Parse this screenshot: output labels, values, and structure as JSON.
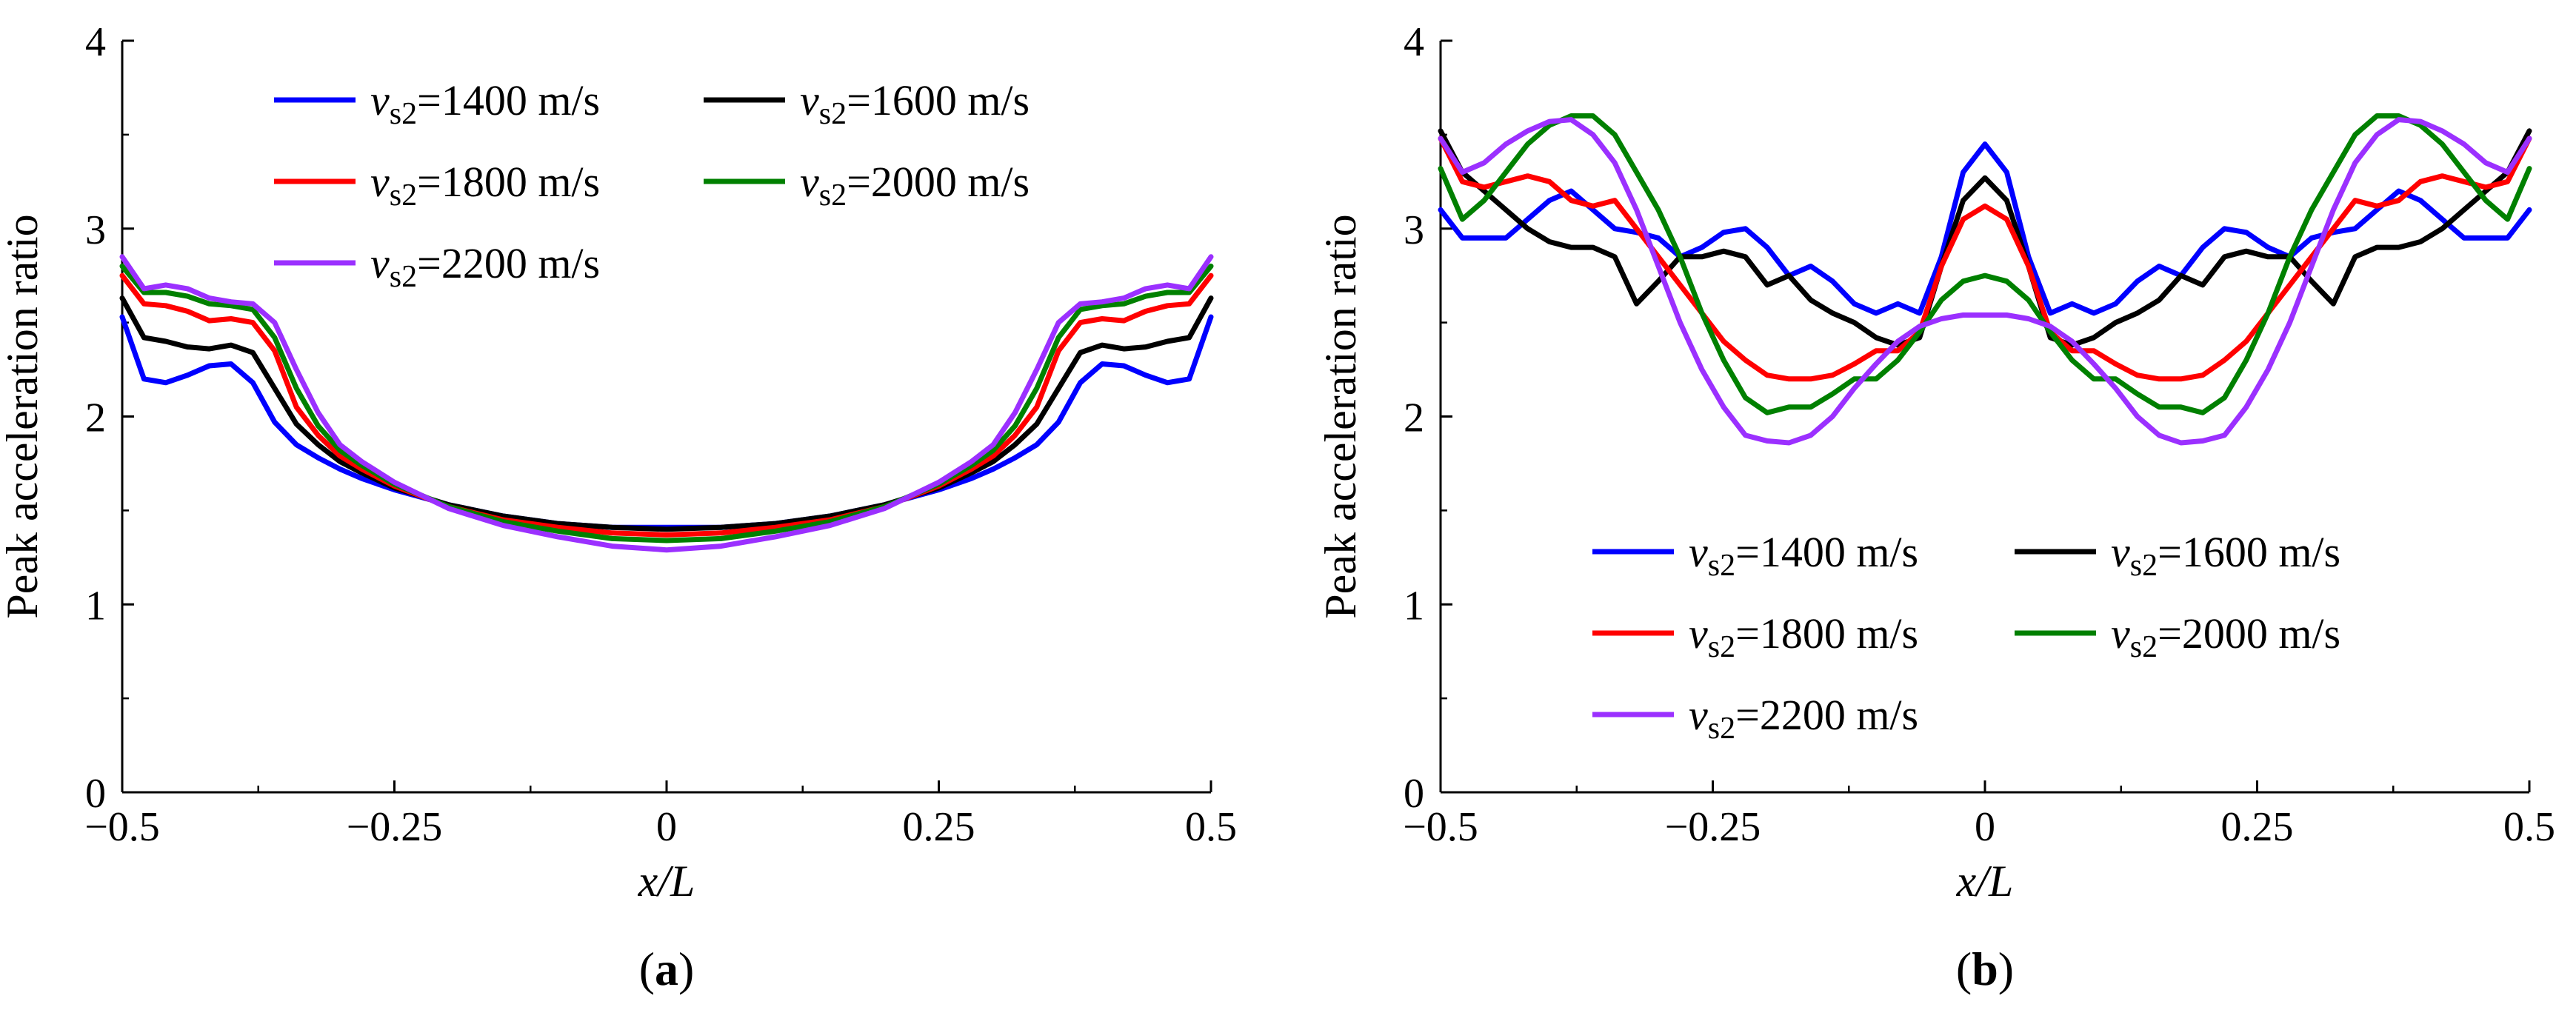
{
  "chart_data": [
    {
      "type": "line",
      "panel_label": "(a)",
      "panel_letter": "a",
      "xlabel": "x/L",
      "ylabel": "Peak acceleration ratio",
      "xlim": [
        -0.5,
        0.5
      ],
      "ylim": [
        0,
        4
      ],
      "xticks": [
        -0.5,
        -0.25,
        0,
        0.25,
        0.5
      ],
      "xtick_labels": [
        "−0.5",
        "−0.25",
        "0",
        "0.25",
        "0.5"
      ],
      "yticks": [
        0,
        1,
        2,
        3,
        4
      ],
      "ytick_labels": [
        "0",
        "1",
        "2",
        "3",
        "4"
      ],
      "grid": false,
      "legend_position": "top-center",
      "x": [
        -0.5,
        -0.48,
        -0.46,
        -0.44,
        -0.42,
        -0.4,
        -0.38,
        -0.36,
        -0.34,
        -0.32,
        -0.3,
        -0.28,
        -0.25,
        -0.2,
        -0.15,
        -0.1,
        -0.05,
        0,
        0.05,
        0.1,
        0.15,
        0.2,
        0.25,
        0.28,
        0.3,
        0.32,
        0.34,
        0.36,
        0.38,
        0.4,
        0.42,
        0.44,
        0.46,
        0.48,
        0.5
      ],
      "series": [
        {
          "name": "v_s2=1400 m/s",
          "color": "#0000ff",
          "values": [
            2.53,
            2.2,
            2.18,
            2.22,
            2.27,
            2.28,
            2.18,
            1.97,
            1.85,
            1.78,
            1.72,
            1.67,
            1.61,
            1.53,
            1.47,
            1.43,
            1.41,
            1.41,
            1.41,
            1.43,
            1.47,
            1.53,
            1.61,
            1.67,
            1.72,
            1.78,
            1.85,
            1.97,
            2.18,
            2.28,
            2.27,
            2.22,
            2.18,
            2.2,
            2.53
          ]
        },
        {
          "name": "v_s2=1600 m/s",
          "color": "#000000",
          "values": [
            2.63,
            2.42,
            2.4,
            2.37,
            2.36,
            2.38,
            2.34,
            2.15,
            1.96,
            1.85,
            1.76,
            1.7,
            1.62,
            1.53,
            1.47,
            1.43,
            1.41,
            1.4,
            1.41,
            1.43,
            1.47,
            1.53,
            1.62,
            1.7,
            1.76,
            1.85,
            1.96,
            2.15,
            2.34,
            2.38,
            2.36,
            2.37,
            2.4,
            2.42,
            2.63
          ]
        },
        {
          "name": "v_s2=1800 m/s",
          "color": "#ff0000",
          "values": [
            2.75,
            2.6,
            2.59,
            2.56,
            2.51,
            2.52,
            2.5,
            2.35,
            2.05,
            1.9,
            1.79,
            1.72,
            1.63,
            1.52,
            1.45,
            1.41,
            1.38,
            1.37,
            1.38,
            1.41,
            1.45,
            1.52,
            1.63,
            1.72,
            1.79,
            1.9,
            2.05,
            2.35,
            2.5,
            2.52,
            2.51,
            2.56,
            2.59,
            2.6,
            2.75
          ]
        },
        {
          "name": "v_s2=2000 m/s",
          "color": "#008000",
          "values": [
            2.8,
            2.66,
            2.66,
            2.64,
            2.6,
            2.59,
            2.57,
            2.42,
            2.15,
            1.95,
            1.82,
            1.74,
            1.64,
            1.52,
            1.44,
            1.39,
            1.35,
            1.34,
            1.35,
            1.39,
            1.44,
            1.52,
            1.64,
            1.74,
            1.82,
            1.95,
            2.15,
            2.42,
            2.57,
            2.59,
            2.6,
            2.64,
            2.66,
            2.66,
            2.8
          ]
        },
        {
          "name": "v_s2=2200 m/s",
          "color": "#9b30ff",
          "values": [
            2.85,
            2.68,
            2.7,
            2.68,
            2.63,
            2.61,
            2.6,
            2.5,
            2.25,
            2.02,
            1.85,
            1.76,
            1.65,
            1.51,
            1.42,
            1.36,
            1.31,
            1.29,
            1.31,
            1.36,
            1.42,
            1.51,
            1.65,
            1.76,
            1.85,
            2.02,
            2.25,
            2.5,
            2.6,
            2.61,
            2.63,
            2.68,
            2.7,
            2.68,
            2.85
          ]
        }
      ]
    },
    {
      "type": "line",
      "panel_label": "(b)",
      "panel_letter": "b",
      "xlabel": "x/L",
      "ylabel": "Peak acceleration ratio",
      "xlim": [
        -0.5,
        0.5
      ],
      "ylim": [
        0,
        4
      ],
      "xticks": [
        -0.5,
        -0.25,
        0,
        0.25,
        0.5
      ],
      "xtick_labels": [
        "−0.5",
        "−0.25",
        "0",
        "0.25",
        "0.5"
      ],
      "yticks": [
        0,
        1,
        2,
        3,
        4
      ],
      "ytick_labels": [
        "0",
        "1",
        "2",
        "3",
        "4"
      ],
      "grid": false,
      "legend_position": "bottom-center",
      "x": [
        -0.5,
        -0.48,
        -0.46,
        -0.44,
        -0.42,
        -0.4,
        -0.38,
        -0.36,
        -0.34,
        -0.32,
        -0.3,
        -0.28,
        -0.26,
        -0.24,
        -0.22,
        -0.2,
        -0.18,
        -0.16,
        -0.14,
        -0.12,
        -0.1,
        -0.08,
        -0.06,
        -0.04,
        -0.02,
        0,
        0.02,
        0.04,
        0.06,
        0.08,
        0.1,
        0.12,
        0.14,
        0.16,
        0.18,
        0.2,
        0.22,
        0.24,
        0.26,
        0.28,
        0.3,
        0.32,
        0.34,
        0.36,
        0.38,
        0.4,
        0.42,
        0.44,
        0.46,
        0.48,
        0.5
      ],
      "series": [
        {
          "name": "v_s2=1400 m/s",
          "color": "#0000ff",
          "values": [
            3.1,
            2.95,
            2.95,
            2.95,
            3.05,
            3.15,
            3.2,
            3.1,
            3.0,
            2.98,
            2.95,
            2.85,
            2.9,
            2.98,
            3.0,
            2.9,
            2.75,
            2.8,
            2.72,
            2.6,
            2.55,
            2.6,
            2.55,
            2.85,
            3.3,
            3.45,
            3.3,
            2.85,
            2.55,
            2.6,
            2.55,
            2.6,
            2.72,
            2.8,
            2.75,
            2.9,
            3.0,
            2.98,
            2.9,
            2.85,
            2.95,
            2.98,
            3.0,
            3.1,
            3.2,
            3.15,
            3.05,
            2.95,
            2.95,
            2.95,
            3.1
          ]
        },
        {
          "name": "v_s2=1600 m/s",
          "color": "#000000",
          "values": [
            3.52,
            3.3,
            3.2,
            3.1,
            3.0,
            2.93,
            2.9,
            2.9,
            2.85,
            2.6,
            2.72,
            2.85,
            2.85,
            2.88,
            2.85,
            2.7,
            2.75,
            2.62,
            2.55,
            2.5,
            2.42,
            2.38,
            2.42,
            2.8,
            3.15,
            3.27,
            3.15,
            2.8,
            2.42,
            2.38,
            2.42,
            2.5,
            2.55,
            2.62,
            2.75,
            2.7,
            2.85,
            2.88,
            2.85,
            2.85,
            2.72,
            2.6,
            2.85,
            2.9,
            2.9,
            2.93,
            3.0,
            3.1,
            3.2,
            3.3,
            3.52
          ]
        },
        {
          "name": "v_s2=1800 m/s",
          "color": "#ff0000",
          "values": [
            3.48,
            3.25,
            3.22,
            3.25,
            3.28,
            3.25,
            3.15,
            3.12,
            3.15,
            3.0,
            2.85,
            2.7,
            2.55,
            2.4,
            2.3,
            2.22,
            2.2,
            2.2,
            2.22,
            2.28,
            2.35,
            2.35,
            2.45,
            2.8,
            3.05,
            3.12,
            3.05,
            2.8,
            2.45,
            2.35,
            2.35,
            2.28,
            2.22,
            2.2,
            2.2,
            2.22,
            2.3,
            2.4,
            2.55,
            2.7,
            2.85,
            3.0,
            3.15,
            3.12,
            3.15,
            3.25,
            3.28,
            3.25,
            3.22,
            3.25,
            3.48
          ]
        },
        {
          "name": "v_s2=2000 m/s",
          "color": "#008000",
          "values": [
            3.32,
            3.05,
            3.15,
            3.3,
            3.45,
            3.55,
            3.6,
            3.6,
            3.5,
            3.3,
            3.1,
            2.85,
            2.55,
            2.3,
            2.1,
            2.02,
            2.05,
            2.05,
            2.12,
            2.2,
            2.2,
            2.3,
            2.45,
            2.62,
            2.72,
            2.75,
            2.72,
            2.62,
            2.45,
            2.3,
            2.2,
            2.2,
            2.12,
            2.05,
            2.05,
            2.02,
            2.1,
            2.3,
            2.55,
            2.85,
            3.1,
            3.3,
            3.5,
            3.6,
            3.6,
            3.55,
            3.45,
            3.3,
            3.15,
            3.05,
            3.32
          ]
        },
        {
          "name": "v_s2=2200 m/s",
          "color": "#9b30ff",
          "values": [
            3.48,
            3.3,
            3.35,
            3.45,
            3.52,
            3.57,
            3.58,
            3.5,
            3.35,
            3.1,
            2.8,
            2.5,
            2.25,
            2.05,
            1.9,
            1.87,
            1.86,
            1.9,
            2.0,
            2.15,
            2.28,
            2.4,
            2.48,
            2.52,
            2.54,
            2.54,
            2.54,
            2.52,
            2.48,
            2.4,
            2.28,
            2.15,
            2.0,
            1.9,
            1.86,
            1.87,
            1.9,
            2.05,
            2.25,
            2.5,
            2.8,
            3.1,
            3.35,
            3.5,
            3.58,
            3.57,
            3.52,
            3.45,
            3.35,
            3.3,
            3.48
          ]
        }
      ]
    }
  ]
}
